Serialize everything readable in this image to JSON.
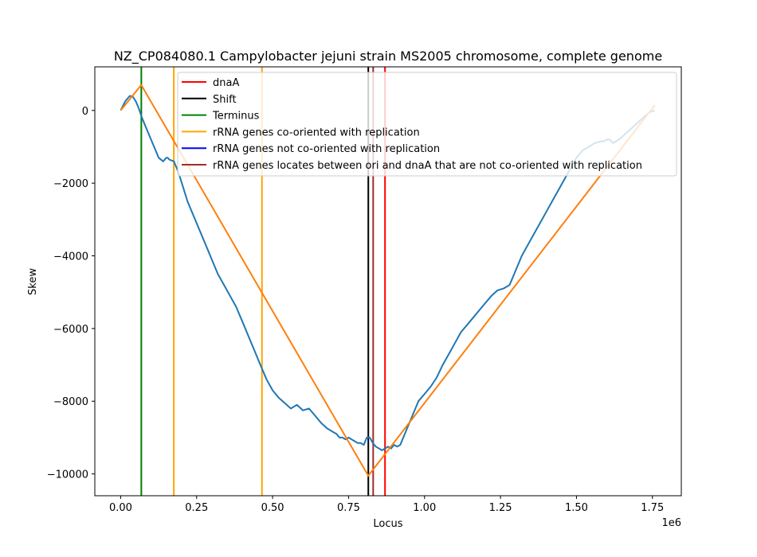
{
  "chart_data": {
    "type": "line",
    "title": "NZ_CP084080.1 Campylobacter jejuni strain MS2005 chromosome, complete genome",
    "xlabel": "Locus",
    "ylabel": "Skew",
    "x_offset_label": "1e6",
    "xlim": [
      -85000,
      1845000
    ],
    "ylim": [
      -10600,
      1200
    ],
    "x_ticks": [
      0,
      250000,
      500000,
      750000,
      1000000,
      1250000,
      1500000,
      1750000
    ],
    "x_tick_labels": [
      "0.00",
      "0.25",
      "0.50",
      "0.75",
      "1.00",
      "1.25",
      "1.50",
      "1.75"
    ],
    "y_ticks": [
      0,
      -2000,
      -4000,
      -6000,
      -8000,
      -10000
    ],
    "y_tick_labels": [
      "0",
      "−2000",
      "−4000",
      "−6000",
      "−8000",
      "−10000"
    ],
    "grid": false,
    "legend_position": "top-right",
    "colors": {
      "skew": "#1f77b4",
      "fit": "#ff7f0e",
      "dnaA": "#ff0000",
      "shift": "#000000",
      "terminus": "#008000",
      "rrna_co": "#ffa500",
      "rrna_not": "#0000ff",
      "rrna_between": "#a52a2a"
    },
    "legend": [
      {
        "label": "dnaA",
        "color": "#ff0000"
      },
      {
        "label": "Shift",
        "color": "#000000"
      },
      {
        "label": "Terminus",
        "color": "#008000"
      },
      {
        "label": "rRNA genes co-oriented with replication",
        "color": "#ffa500"
      },
      {
        "label": "rRNA genes not co-oriented with replication",
        "color": "#0000ff"
      },
      {
        "label": "rRNA genes locates between ori and dnaA that are not co-oriented with replication",
        "color": "#a52a2a"
      }
    ],
    "vertical_lines": [
      {
        "kind": "terminus",
        "x": 68000,
        "color": "#008000"
      },
      {
        "kind": "rrna_co",
        "x": 175000,
        "color": "#ffa500"
      },
      {
        "kind": "rrna_co",
        "x": 465000,
        "color": "#ffa500"
      },
      {
        "kind": "shift",
        "x": 815000,
        "color": "#000000"
      },
      {
        "kind": "rrna_between",
        "x": 831000,
        "color": "#a52a2a"
      },
      {
        "kind": "dnaA",
        "x": 870000,
        "color": "#ff0000"
      }
    ],
    "series": [
      {
        "color": "#1f77b4",
        "x": [
          0,
          15000,
          30000,
          40000,
          50000,
          60000,
          68000,
          80000,
          95000,
          110000,
          125000,
          140000,
          150000,
          155000,
          160000,
          175000,
          190000,
          205000,
          220000,
          240000,
          260000,
          280000,
          300000,
          320000,
          340000,
          360000,
          380000,
          400000,
          420000,
          440000,
          460000,
          480000,
          500000,
          520000,
          540000,
          560000,
          580000,
          600000,
          620000,
          640000,
          660000,
          680000,
          700000,
          710000,
          720000,
          730000,
          740000,
          750000,
          760000,
          770000,
          780000,
          790000,
          800000,
          810000,
          820000,
          830000,
          840000,
          850000,
          860000,
          870000,
          880000,
          890000,
          900000,
          910000,
          920000,
          940000,
          960000,
          980000,
          1000000,
          1020000,
          1040000,
          1060000,
          1080000,
          1100000,
          1120000,
          1140000,
          1160000,
          1180000,
          1200000,
          1220000,
          1240000,
          1260000,
          1280000,
          1290000,
          1300000,
          1310000,
          1320000,
          1340000,
          1360000,
          1380000,
          1400000,
          1420000,
          1440000,
          1460000,
          1480000,
          1500000,
          1520000,
          1540000,
          1560000,
          1580000,
          1590000,
          1600000,
          1610000,
          1620000,
          1640000,
          1660000,
          1680000,
          1700000,
          1720000,
          1740000,
          1758000
        ],
        "y": [
          0,
          250,
          400,
          380,
          250,
          50,
          -150,
          -400,
          -700,
          -1000,
          -1300,
          -1400,
          -1300,
          -1300,
          -1350,
          -1400,
          -1700,
          -2100,
          -2500,
          -2900,
          -3300,
          -3700,
          -4100,
          -4500,
          -4800,
          -5100,
          -5400,
          -5800,
          -6200,
          -6600,
          -7000,
          -7400,
          -7700,
          -7900,
          -8050,
          -8200,
          -8100,
          -8250,
          -8200,
          -8400,
          -8600,
          -8750,
          -8850,
          -8900,
          -9000,
          -9000,
          -9050,
          -9000,
          -9050,
          -9100,
          -9150,
          -9150,
          -9200,
          -9000,
          -9000,
          -9150,
          -9250,
          -9300,
          -9350,
          -9300,
          -9250,
          -9300,
          -9200,
          -9250,
          -9200,
          -8800,
          -8400,
          -8000,
          -7800,
          -7600,
          -7350,
          -7000,
          -6700,
          -6400,
          -6100,
          -5900,
          -5700,
          -5500,
          -5300,
          -5100,
          -4950,
          -4900,
          -4800,
          -4600,
          -4400,
          -4200,
          -4000,
          -3700,
          -3400,
          -3100,
          -2800,
          -2500,
          -2200,
          -1900,
          -1600,
          -1300,
          -1100,
          -1000,
          -900,
          -850,
          -850,
          -800,
          -800,
          -900,
          -800,
          -650,
          -500,
          -350,
          -200,
          -50,
          0
        ]
      },
      {
        "color": "#ff7f0e",
        "x": [
          0,
          68000,
          815000,
          1758000
        ],
        "y": [
          0,
          700,
          -10050,
          150
        ]
      }
    ]
  }
}
